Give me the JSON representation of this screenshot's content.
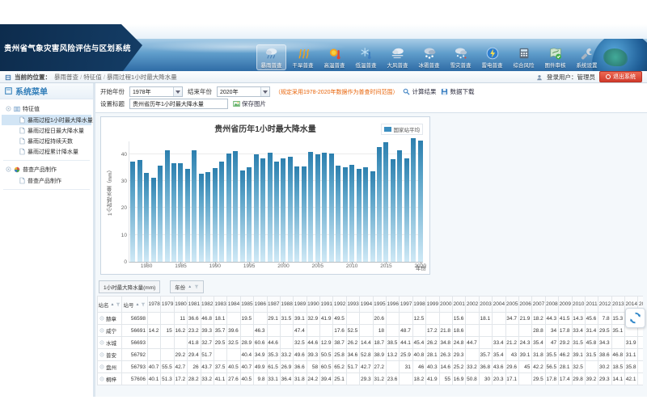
{
  "header": {
    "app_title": "贵州省气象灾害风险评估与区划系统",
    "active_index": 0,
    "nav_items": [
      {
        "label": "暴雨普查",
        "icon": "rainstorm"
      },
      {
        "label": "干旱普查",
        "icon": "drought"
      },
      {
        "label": "高温普查",
        "icon": "high-temp"
      },
      {
        "label": "低温普查",
        "icon": "low-temp"
      },
      {
        "label": "大风普查",
        "icon": "wind"
      },
      {
        "label": "冰雹普查",
        "icon": "hail"
      },
      {
        "label": "雪灾普查",
        "icon": "snow"
      },
      {
        "label": "雷电普查",
        "icon": "lightning"
      },
      {
        "label": "综合风险",
        "icon": "risk"
      },
      {
        "label": "图件审核",
        "icon": "map-review"
      },
      {
        "label": "系统设置",
        "icon": "settings"
      }
    ]
  },
  "topbar": {
    "location_label": "当前的位置：",
    "breadcrumbs": [
      "暴雨普查",
      "特征值",
      "暴雨过程1小时最大降水量"
    ],
    "user_label": "登录用户：管理员",
    "logout_label": "退出系统"
  },
  "sidebar": {
    "title": "系统菜单",
    "groups": [
      {
        "label": "特征值",
        "icon": "list",
        "items": [
          "暴雨过程1小时最大降水量",
          "暴雨过程日最大降水量",
          "暴雨过程持续天数",
          "暴雨过程累计降水量"
        ],
        "selected": 0
      },
      {
        "label": "普查产品制作",
        "icon": "pie",
        "items": [
          "普查产品制作"
        ],
        "selected": -1
      }
    ]
  },
  "filters": {
    "start_year_label": "开始年份",
    "start_year_value": "1978年",
    "end_year_label": "结束年份",
    "end_year_value": "2020年",
    "note": "（规定采用1978-2020年数据作为普查时间范围）",
    "calc_button": "计算结果",
    "download_button": "数据下载",
    "title_label": "设置标题",
    "title_value": "贵州省历年1小时最大降水量",
    "save_image_button": "保存图片"
  },
  "chart_data": {
    "type": "bar",
    "title": "贵州省历年1小时最大降水量",
    "legend": [
      "国家站平均"
    ],
    "xlabel": "年份",
    "ylabel": "1小时降水量（mm）",
    "ylim": [
      0,
      45
    ],
    "yticks": [
      0,
      10,
      20,
      30,
      40
    ],
    "xticks": [
      1980,
      1985,
      1990,
      1995,
      2000,
      2005,
      2010,
      2015,
      2020
    ],
    "x": [
      1978,
      1979,
      1980,
      1981,
      1982,
      1983,
      1984,
      1985,
      1986,
      1987,
      1988,
      1989,
      1990,
      1991,
      1992,
      1993,
      1994,
      1995,
      1996,
      1997,
      1998,
      1999,
      2000,
      2001,
      2002,
      2003,
      2004,
      2005,
      2006,
      2007,
      2008,
      2009,
      2010,
      2011,
      2012,
      2013,
      2014,
      2015,
      2016,
      2017,
      2018,
      2019,
      2020
    ],
    "values": [
      37.3,
      37.9,
      33.1,
      31.3,
      35.6,
      41.3,
      36.7,
      36.6,
      34.4,
      41.5,
      32.7,
      33.4,
      34.8,
      37.1,
      40.1,
      41.2,
      33.8,
      35,
      39.8,
      38.3,
      40.5,
      37.1,
      38.4,
      38.9,
      35.3,
      35.4,
      40.9,
      40,
      40.4,
      40.2,
      35.7,
      35.2,
      36,
      34.6,
      35.1,
      33.5,
      42.6,
      44.3,
      38,
      41.5,
      38.3,
      46,
      44.9
    ],
    "grid": true,
    "legend_position": "top-right",
    "bar_color_top": "#2c7fae",
    "bar_color_bottom": "#cfe9f6",
    "legend_swatch": "#3b8ec0"
  },
  "table": {
    "measure_field": "1小时最大降水量(mm)",
    "column_field": "年份",
    "row_headers": [
      "站名",
      "站号"
    ],
    "years": [
      1978,
      1979,
      1980,
      1981,
      1982,
      1983,
      1984,
      1985,
      1986,
      1987,
      1988,
      1989,
      1990,
      1991,
      1992,
      1993,
      1994,
      1995,
      1996,
      1997,
      1998,
      1999,
      2000,
      2001,
      2002,
      2003,
      2004,
      2005,
      2006,
      2007,
      2008,
      2009,
      2010,
      2011,
      2012,
      2013,
      2014,
      2015
    ],
    "rows": [
      {
        "name": "赫章",
        "id": "56598",
        "values": [
          "",
          "",
          "11",
          "36.6",
          "46.8",
          "18.1",
          "",
          "19.5",
          "",
          "29.1",
          "31.5",
          "39.1",
          "32.9",
          "41.9",
          "49.5",
          "",
          "",
          "20.6",
          "",
          "",
          "12.5",
          "",
          "",
          "15.6",
          "",
          "18.1",
          "",
          "34.7",
          "21.9",
          "18.2",
          "44.3",
          "41.5",
          "14.3",
          "45.6",
          "7.8",
          "15.3",
          "23",
          ""
        ]
      },
      {
        "name": "威宁",
        "id": "56691",
        "values": [
          "14.2",
          "15",
          "16.2",
          "23.2",
          "39.3",
          "35.7",
          "39.6",
          "",
          "46.3",
          "",
          "",
          "47.4",
          "",
          "",
          "17.6",
          "52.5",
          "",
          "18",
          "",
          "48.7",
          "",
          "17.2",
          "21.8",
          "18.6",
          "",
          "",
          "",
          "",
          "",
          "28.8",
          "34",
          "17.8",
          "33.4",
          "31.4",
          "29.5",
          "35.1",
          "",
          ""
        ]
      },
      {
        "name": "水城",
        "id": "56693",
        "values": [
          "",
          "",
          "",
          "41.8",
          "32.7",
          "29.5",
          "32.5",
          "28.9",
          "60.6",
          "44.6",
          "",
          "32.5",
          "44.6",
          "12.9",
          "38.7",
          "26.2",
          "14.4",
          "18.7",
          "38.5",
          "44.1",
          "45.4",
          "26.2",
          "34.8",
          "24.8",
          "44.7",
          "",
          "33.4",
          "21.2",
          "24.3",
          "35.4",
          "47",
          "29.2",
          "31.5",
          "45.8",
          "34.3",
          "",
          "31.9",
          ""
        ]
      },
      {
        "name": "普安",
        "id": "56792",
        "values": [
          "",
          "",
          "29.2",
          "29.4",
          "51.7",
          "",
          "",
          "40.4",
          "34.9",
          "35.3",
          "33.2",
          "49.6",
          "39.3",
          "50.5",
          "25.8",
          "34.6",
          "52.8",
          "38.9",
          "13.2",
          "25.9",
          "40.8",
          "28.1",
          "26.3",
          "29.3",
          "",
          "35.7",
          "35.4",
          "43",
          "39.1",
          "31.8",
          "35.5",
          "46.2",
          "39.1",
          "31.5",
          "38.6",
          "46.8",
          "31.1",
          ""
        ]
      },
      {
        "name": "盘州",
        "id": "56793",
        "values": [
          "40.7",
          "55.5",
          "42.7",
          "26",
          "43.7",
          "37.5",
          "40.5",
          "40.7",
          "49.9",
          "61.5",
          "26.9",
          "36.6",
          "58",
          "60.5",
          "65.2",
          "51.7",
          "42.7",
          "27.2",
          "",
          "31",
          "46",
          "40.3",
          "14.6",
          "25.2",
          "33.2",
          "36.8",
          "43.6",
          "29.6",
          "45",
          "42.2",
          "56.5",
          "28.1",
          "32.5",
          "",
          "30.2",
          "18.5",
          "35.8",
          ""
        ]
      },
      {
        "name": "桐梓",
        "id": "57606",
        "values": [
          "40.1",
          "51.3",
          "17.2",
          "28.2",
          "33.2",
          "41.1",
          "27.6",
          "40.5",
          "9.8",
          "33.1",
          "36.4",
          "31.8",
          "24.2",
          "39.4",
          "25.1",
          "",
          "29.3",
          "31.2",
          "23.6",
          "",
          "18.2",
          "41.9",
          "55",
          "16.9",
          "50.8",
          "30",
          "20.3",
          "17.1",
          "",
          "29.5",
          "17.8",
          "17.4",
          "29.8",
          "39.2",
          "29.3",
          "14.1",
          "42.1",
          ""
        ]
      }
    ]
  }
}
